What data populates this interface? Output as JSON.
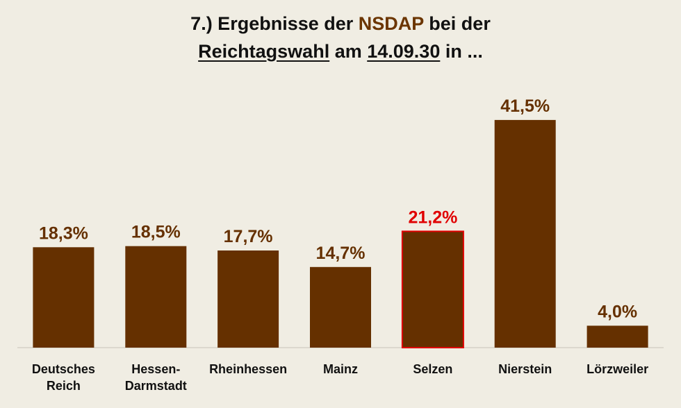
{
  "title": {
    "line1_prefix": "7.) Ergebnisse der ",
    "line1_accent": "NSDAP",
    "line1_suffix": " bei der",
    "line2_word1": "Reichtagswahl",
    "line2_mid": " am ",
    "line2_date": "14.09.30",
    "line2_suffix": " in ..."
  },
  "colors": {
    "bar": "#653000",
    "label": "#653000",
    "highlight": "#e00000",
    "background": "#f0ede3"
  },
  "chart_data": {
    "type": "bar",
    "categories": [
      "Deutsches Reich",
      "Hessen-Darmstadt",
      "Rheinhessen",
      "Mainz",
      "Selzen",
      "Nierstein",
      "Lörzweiler"
    ],
    "category_lines": [
      [
        "Deutsches",
        "Reich"
      ],
      [
        "Hessen-",
        "Darmstadt"
      ],
      [
        "Rheinhessen"
      ],
      [
        "Mainz"
      ],
      [
        "Selzen"
      ],
      [
        "Nierstein"
      ],
      [
        "Lörzweiler"
      ]
    ],
    "values": [
      18.3,
      18.5,
      17.7,
      14.7,
      21.2,
      41.5,
      4.0
    ],
    "data_labels": [
      "18,3%",
      "18,5%",
      "17,7%",
      "14,7%",
      "21,2%",
      "41,5%",
      "4,0%"
    ],
    "highlight_index": 4,
    "ylim": [
      0,
      43
    ],
    "grid": false,
    "legend": "none",
    "unit": "%"
  }
}
